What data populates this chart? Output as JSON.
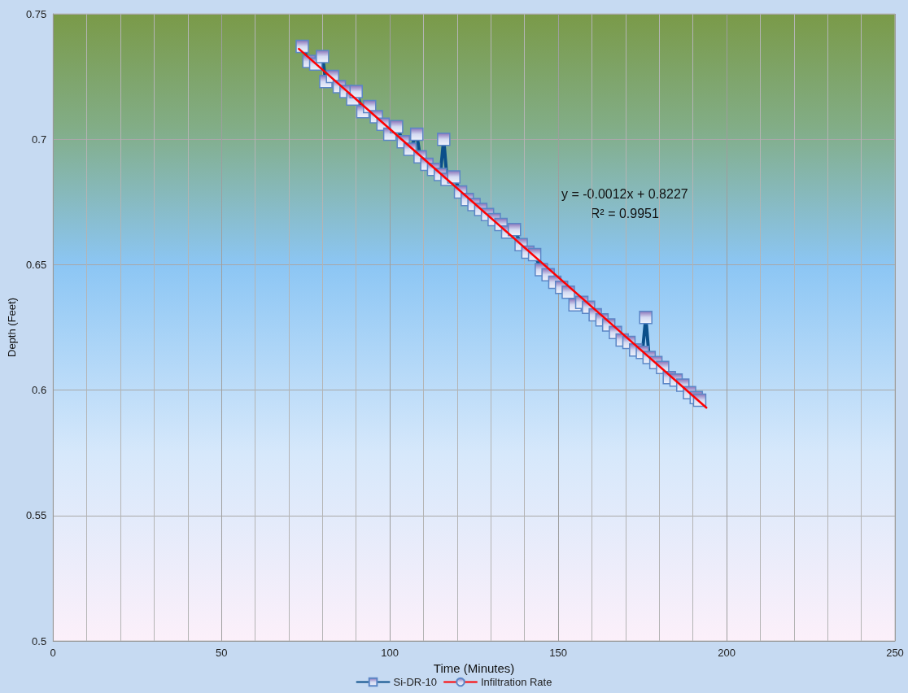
{
  "chart_data": {
    "type": "line",
    "xlabel": "Time (Minutes)",
    "ylabel": "Depth (Feet)",
    "xlim": [
      0,
      250
    ],
    "xticks": [
      0,
      50,
      100,
      150,
      200,
      250
    ],
    "ylim": [
      0.5,
      0.75
    ],
    "yticks": [
      0.5,
      0.55,
      0.6,
      0.65,
      0.7,
      0.75
    ],
    "grid": true,
    "legend": "bottom",
    "marker": "square",
    "line_style": "solid",
    "annotations": [
      "y = -0.0012x + 0.8227",
      "R² = 0.9951"
    ],
    "series": [
      {
        "name": "Si-DR-10",
        "color": "#0b4f8a",
        "x": [
          74,
          76,
          78,
          80,
          81,
          83,
          85,
          87,
          89,
          90,
          92,
          94,
          96,
          98,
          100,
          102,
          104,
          106,
          108,
          109,
          111,
          113,
          115,
          116,
          117,
          119,
          121,
          123,
          125,
          127,
          129,
          131,
          133,
          135,
          137,
          139,
          141,
          143,
          145,
          147,
          149,
          151,
          153,
          155,
          157,
          159,
          161,
          163,
          165,
          167,
          169,
          171,
          173,
          175,
          176,
          177,
          179,
          181,
          183,
          185,
          187,
          189,
          191,
          192
        ],
        "values": [
          0.737,
          0.731,
          0.73,
          0.733,
          0.723,
          0.725,
          0.721,
          0.719,
          0.716,
          0.719,
          0.711,
          0.713,
          0.709,
          0.706,
          0.702,
          0.705,
          0.699,
          0.696,
          0.702,
          0.693,
          0.69,
          0.688,
          0.686,
          0.7,
          0.684,
          0.685,
          0.679,
          0.676,
          0.674,
          0.672,
          0.67,
          0.668,
          0.666,
          0.663,
          0.664,
          0.658,
          0.655,
          0.654,
          0.648,
          0.646,
          0.643,
          0.641,
          0.639,
          0.634,
          0.635,
          0.633,
          0.63,
          0.628,
          0.626,
          0.623,
          0.62,
          0.619,
          0.616,
          0.615,
          0.629,
          0.613,
          0.611,
          0.609,
          0.605,
          0.604,
          0.602,
          0.599,
          0.597,
          0.596
        ]
      },
      {
        "name": "Infiltration Rate",
        "color": "#ff0000",
        "marker": "none",
        "x": [
          73,
          194
        ],
        "values": [
          0.736,
          0.593
        ]
      }
    ]
  }
}
